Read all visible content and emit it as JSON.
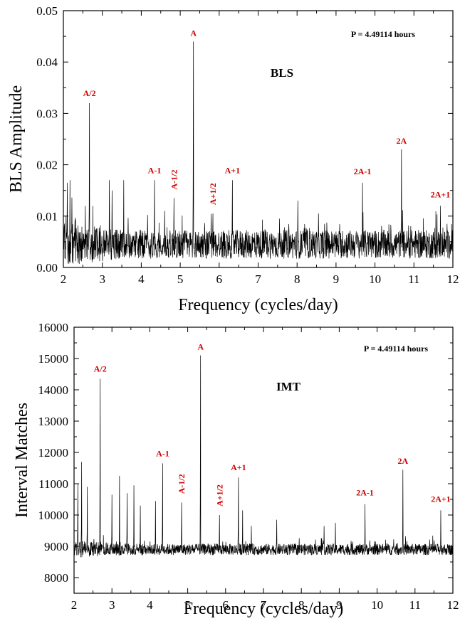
{
  "chart_data": [
    {
      "type": "line",
      "panel_label": "BLS",
      "period_label": "P = 4.49114 hours",
      "xlabel": "Frequency (cycles/day)",
      "ylabel": "BLS Amplitude",
      "xlim": [
        2,
        12
      ],
      "ylim": [
        0,
        0.05
      ],
      "xticks": [
        "2",
        "3",
        "4",
        "5",
        "6",
        "7",
        "8",
        "9",
        "10",
        "11",
        "12"
      ],
      "yticks": [
        "0.00",
        "0.01",
        "0.02",
        "0.03",
        "0.04",
        "0.05"
      ],
      "noise_baseline": 0.0045,
      "noise_amplitude": 0.0028,
      "peaks": [
        {
          "label": "A/2",
          "x": 2.67,
          "y": 0.032
        },
        {
          "label": "A-1",
          "x": 4.34,
          "y": 0.017
        },
        {
          "label": "A-1/2",
          "x": 4.84,
          "y": 0.0135
        },
        {
          "label": "A",
          "x": 5.34,
          "y": 0.044
        },
        {
          "label": "A+1/2",
          "x": 5.84,
          "y": 0.0105
        },
        {
          "label": "A+1",
          "x": 6.34,
          "y": 0.017
        },
        {
          "label": "2A-1",
          "x": 9.68,
          "y": 0.0165
        },
        {
          "label": "2A",
          "x": 10.68,
          "y": 0.023
        },
        {
          "label": "2A+1",
          "x": 11.68,
          "y": 0.012
        }
      ],
      "other_spikes": [
        {
          "x": 2.1,
          "y": 0.0165
        },
        {
          "x": 2.17,
          "y": 0.017
        },
        {
          "x": 3.18,
          "y": 0.017
        },
        {
          "x": 3.55,
          "y": 0.017
        },
        {
          "x": 3.25,
          "y": 0.015
        },
        {
          "x": 8.02,
          "y": 0.013
        },
        {
          "x": 8.55,
          "y": 0.0105
        },
        {
          "x": 7.55,
          "y": 0.0095
        },
        {
          "x": 4.6,
          "y": 0.011
        }
      ]
    },
    {
      "type": "line",
      "panel_label": "IMT",
      "period_label": "P = 4.49114 hours",
      "xlabel": "Frequency (cycles/day)",
      "ylabel": "Interval Matches",
      "xlim": [
        2,
        12
      ],
      "ylim": [
        7500,
        16000
      ],
      "xticks": [
        "2",
        "3",
        "4",
        "5",
        "6",
        "7",
        "8",
        "9",
        "10",
        "11",
        "12"
      ],
      "yticks": [
        "8000",
        "9000",
        "10000",
        "11000",
        "12000",
        "13000",
        "14000",
        "15000",
        "16000"
      ],
      "noise_baseline": 8900,
      "noise_amplitude": 180,
      "peaks": [
        {
          "label": "A/2",
          "x": 2.69,
          "y": 14350
        },
        {
          "label": "A-1",
          "x": 4.34,
          "y": 11650
        },
        {
          "label": "A-1/2",
          "x": 4.84,
          "y": 10400
        },
        {
          "label": "A",
          "x": 5.34,
          "y": 15100
        },
        {
          "label": "A+1/2",
          "x": 5.84,
          "y": 10000
        },
        {
          "label": "A+1",
          "x": 6.34,
          "y": 11200
        },
        {
          "label": "2A-1",
          "x": 9.68,
          "y": 10350
        },
        {
          "label": "2A",
          "x": 10.68,
          "y": 11450
        },
        {
          "label": "2A+1",
          "x": 11.68,
          "y": 10150
        }
      ],
      "other_spikes": [
        {
          "x": 2.1,
          "y": 11000
        },
        {
          "x": 2.2,
          "y": 11700
        },
        {
          "x": 2.35,
          "y": 10900
        },
        {
          "x": 3.0,
          "y": 10650
        },
        {
          "x": 3.2,
          "y": 11250
        },
        {
          "x": 3.4,
          "y": 10700
        },
        {
          "x": 3.58,
          "y": 10950
        },
        {
          "x": 3.75,
          "y": 10300
        },
        {
          "x": 4.15,
          "y": 10450
        },
        {
          "x": 6.45,
          "y": 10150
        },
        {
          "x": 7.35,
          "y": 9850
        },
        {
          "x": 8.6,
          "y": 9650
        },
        {
          "x": 8.9,
          "y": 9750
        },
        {
          "x": 6.68,
          "y": 9650
        }
      ]
    }
  ]
}
